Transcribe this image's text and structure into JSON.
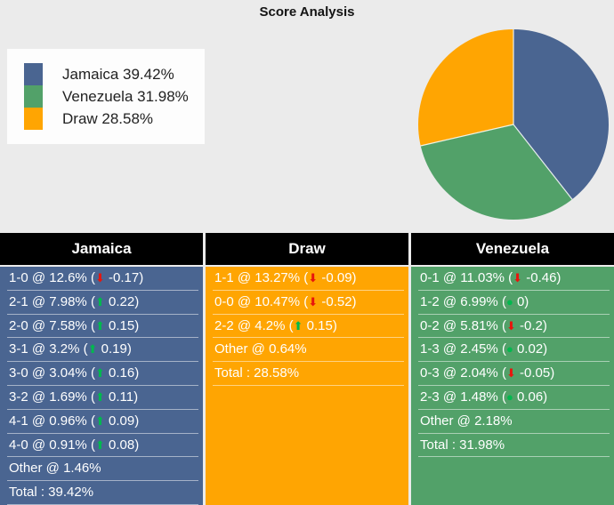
{
  "title": "Score Analysis",
  "colors": {
    "background": "#ebebeb",
    "legend_background": "#fdfdfd",
    "jamaica": "#4a6591",
    "venezuela": "#52a169",
    "draw": "#ffa502",
    "header_background": "#000000",
    "header_text": "#ffffff",
    "row_text": "#ffffff",
    "indicator_up": "#00b94e",
    "indicator_down": "#e8150d",
    "indicator_dot": "#00b94e"
  },
  "legend": {
    "items": [
      {
        "label": "Jamaica 39.42%",
        "color": "#4a6591"
      },
      {
        "label": "Venezuela 31.98%",
        "color": "#52a169"
      },
      {
        "label": "Draw 28.58%",
        "color": "#ffa502"
      }
    ]
  },
  "chart_data": {
    "type": "pie",
    "title": "Score Analysis",
    "labels": [
      "Jamaica",
      "Venezuela",
      "Draw"
    ],
    "values": [
      39.42,
      31.98,
      28.58
    ],
    "colors": [
      "#4a6591",
      "#52a169",
      "#ffa502"
    ],
    "start_angle_deg": 0,
    "direction": "clockwise",
    "legend_position": "left"
  },
  "tables": [
    {
      "header": "Jamaica",
      "body_color": "#4a6591",
      "rows": [
        {
          "pre": "1-0 @ 12.6% (",
          "ind": "down",
          "post": " -0.17)"
        },
        {
          "pre": "2-1 @ 7.98% (",
          "ind": "up",
          "post": " 0.22)"
        },
        {
          "pre": "2-0 @ 7.58% (",
          "ind": "up",
          "post": " 0.15)"
        },
        {
          "pre": "3-1 @ 3.2% (",
          "ind": "up",
          "post": " 0.19)"
        },
        {
          "pre": "3-0 @ 3.04% (",
          "ind": "up",
          "post": " 0.16)"
        },
        {
          "pre": "3-2 @ 1.69% (",
          "ind": "up",
          "post": " 0.11)"
        },
        {
          "pre": "4-1 @ 0.96% (",
          "ind": "up",
          "post": " 0.09)"
        },
        {
          "pre": "4-0 @ 0.91% (",
          "ind": "up",
          "post": " 0.08)"
        },
        {
          "text": "Other @ 1.46%"
        },
        {
          "text": "Total : 39.42%"
        }
      ]
    },
    {
      "header": "Draw",
      "body_color": "#ffa502",
      "rows": [
        {
          "pre": "1-1 @ 13.27% (",
          "ind": "down",
          "post": " -0.09)"
        },
        {
          "pre": "0-0 @ 10.47% (",
          "ind": "down",
          "post": " -0.52)"
        },
        {
          "pre": "2-2 @ 4.2% (",
          "ind": "up",
          "post": " 0.15)"
        },
        {
          "text": "Other @ 0.64%"
        },
        {
          "text": "Total : 28.58%"
        }
      ]
    },
    {
      "header": "Venezuela",
      "body_color": "#52a169",
      "rows": [
        {
          "pre": "0-1 @ 11.03% (",
          "ind": "down",
          "post": " -0.46)"
        },
        {
          "pre": "1-2 @ 6.99% (",
          "ind": "dot",
          "post": " 0)"
        },
        {
          "pre": "0-2 @ 5.81% (",
          "ind": "down",
          "post": " -0.2)"
        },
        {
          "pre": "1-3 @ 2.45% (",
          "ind": "dot",
          "post": " 0.02)"
        },
        {
          "pre": "0-3 @ 2.04% (",
          "ind": "down",
          "post": " -0.05)"
        },
        {
          "pre": "2-3 @ 1.48% (",
          "ind": "dot",
          "post": " 0.06)"
        },
        {
          "text": "Other @ 2.18%"
        },
        {
          "text": "Total : 31.98%"
        }
      ]
    }
  ]
}
